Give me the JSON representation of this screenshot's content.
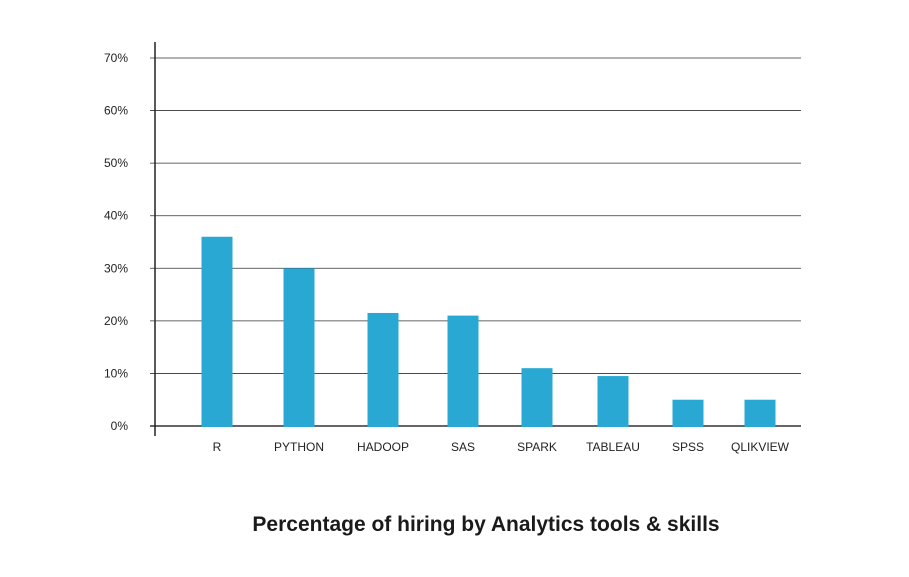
{
  "chart_data": {
    "type": "bar",
    "title": "Percentage of hiring by Analytics tools & skills",
    "xlabel": "",
    "ylabel": "",
    "categories": [
      "R",
      "PYTHON",
      "HADOOP",
      "SAS",
      "SPARK",
      "TABLEAU",
      "SPSS",
      "QLIKVIEW"
    ],
    "values": [
      36,
      30,
      21.5,
      21,
      11,
      9.5,
      5,
      5
    ],
    "ylim": [
      0,
      70
    ],
    "yticks": [
      "0%",
      "10%",
      "20%",
      "30%",
      "40%",
      "50%",
      "60%",
      "70%"
    ],
    "grid": true,
    "legend": "none",
    "bar_color": "#29a8d4",
    "gridline_color": "#333333"
  }
}
